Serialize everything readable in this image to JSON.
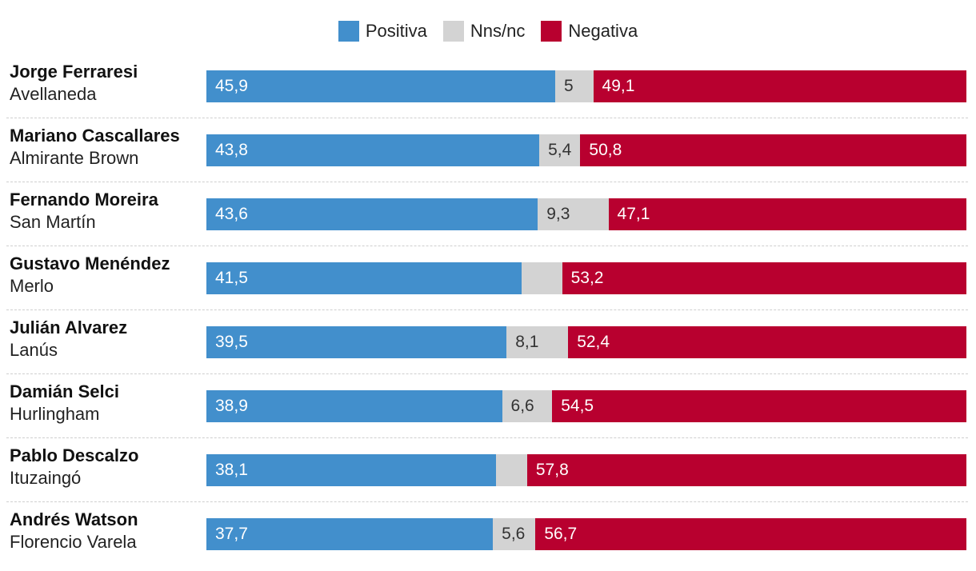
{
  "chart_data": {
    "type": "bar",
    "orientation": "horizontal",
    "stacked": true,
    "legend": [
      {
        "key": "pos",
        "label": "Positiva",
        "color": "#428fcc"
      },
      {
        "key": "nns",
        "label": "Nns/nc",
        "color": "#d3d3d3"
      },
      {
        "key": "neg",
        "label": "Negativa",
        "color": "#b8002f"
      }
    ],
    "xlim": [
      0,
      100
    ],
    "rows": [
      {
        "name": "Jorge Ferraresi",
        "place": "Avellaneda",
        "pos": 45.9,
        "nns": 5.0,
        "neg": 49.1,
        "pos_label": "45,9",
        "nns_label": "5",
        "neg_label": "49,1"
      },
      {
        "name": "Mariano Cascallares",
        "place": "Almirante Brown",
        "pos": 43.8,
        "nns": 5.4,
        "neg": 50.8,
        "pos_label": "43,8",
        "nns_label": "5,4",
        "neg_label": "50,8"
      },
      {
        "name": "Fernando Moreira",
        "place": "San Martín",
        "pos": 43.6,
        "nns": 9.3,
        "neg": 47.1,
        "pos_label": "43,6",
        "nns_label": "9,3",
        "neg_label": "47,1"
      },
      {
        "name": "Gustavo Menéndez",
        "place": "Merlo",
        "pos": 41.5,
        "nns": 5.3,
        "neg": 53.2,
        "pos_label": "41,5",
        "nns_label": "",
        "neg_label": "53,2"
      },
      {
        "name": "Julián Alvarez",
        "place": "Lanús",
        "pos": 39.5,
        "nns": 8.1,
        "neg": 52.4,
        "pos_label": "39,5",
        "nns_label": "8,1",
        "neg_label": "52,4"
      },
      {
        "name": "Damián Selci",
        "place": "Hurlingham",
        "pos": 38.9,
        "nns": 6.6,
        "neg": 54.5,
        "pos_label": "38,9",
        "nns_label": "6,6",
        "neg_label": "54,5"
      },
      {
        "name": "Pablo Descalzo",
        "place": "Ituzaingó",
        "pos": 38.1,
        "nns": 4.1,
        "neg": 57.8,
        "pos_label": "38,1",
        "nns_label": "",
        "neg_label": "57,8"
      },
      {
        "name": "Andrés Watson",
        "place": "Florencio Varela",
        "pos": 37.7,
        "nns": 5.6,
        "neg": 56.7,
        "pos_label": "37,7",
        "nns_label": "5,6",
        "neg_label": "56,7"
      }
    ]
  }
}
